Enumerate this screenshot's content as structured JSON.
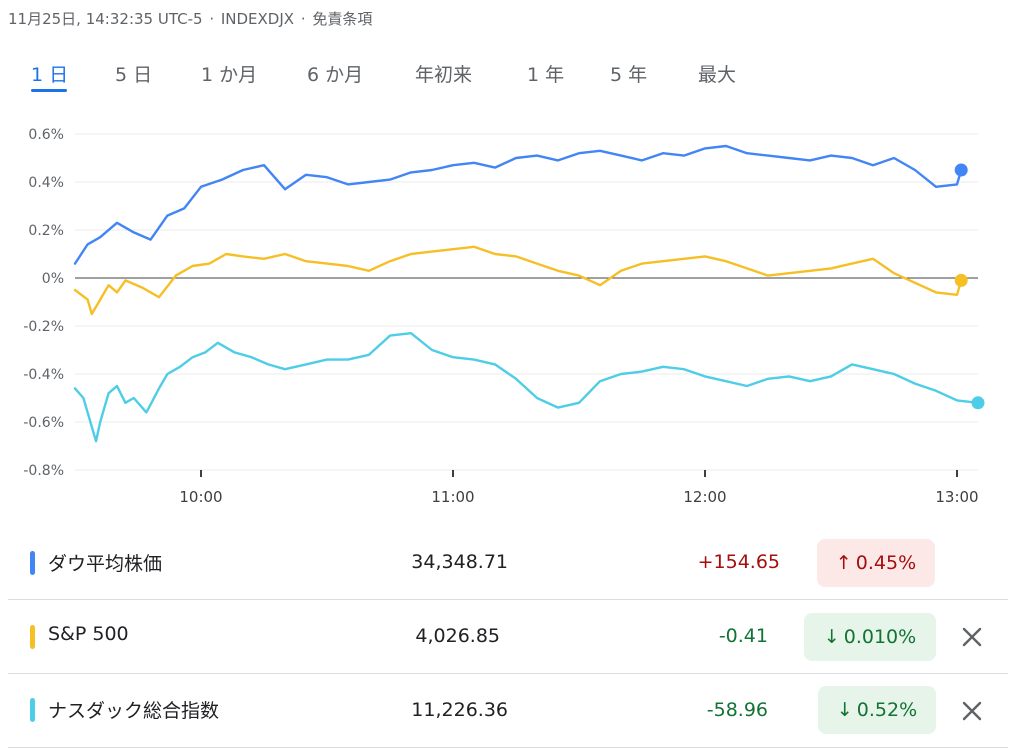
{
  "header": {
    "timestamp": "11月25日, 14:32:35 UTC-5",
    "ticker": "INDEXDJX",
    "disclaimer": "免責条項"
  },
  "tabs": [
    "1 日",
    "5 日",
    "1 か月",
    "6 か月",
    "年初来",
    "1 年",
    "5 年",
    "最大"
  ],
  "active_tab": 0,
  "chart_data": {
    "type": "line",
    "xlabel": "",
    "ylabel": "",
    "x_ticks": [
      "10:00",
      "11:00",
      "12:00",
      "13:00"
    ],
    "y_ticks": [
      "0.6%",
      "0.4%",
      "0.2%",
      "0%",
      "-0.2%",
      "-0.4%",
      "-0.6%",
      "-0.8%"
    ],
    "ylim": [
      -0.8,
      0.6
    ],
    "x_unit": "minutes since 9:30",
    "xlim": [
      0,
      215
    ],
    "grid": true,
    "series": [
      {
        "name": "ダウ平均株価",
        "color": "#4285f4",
        "x": [
          0,
          3,
          6,
          10,
          14,
          18,
          22,
          26,
          30,
          35,
          40,
          45,
          50,
          55,
          60,
          65,
          70,
          75,
          80,
          85,
          90,
          95,
          100,
          105,
          110,
          115,
          120,
          125,
          130,
          135,
          140,
          145,
          150,
          155,
          160,
          165,
          170,
          175,
          180,
          185,
          190,
          195,
          200,
          205,
          210,
          211
        ],
        "values": [
          0.06,
          0.14,
          0.17,
          0.23,
          0.19,
          0.16,
          0.26,
          0.29,
          0.38,
          0.41,
          0.45,
          0.47,
          0.37,
          0.43,
          0.42,
          0.39,
          0.4,
          0.41,
          0.44,
          0.45,
          0.47,
          0.48,
          0.46,
          0.5,
          0.51,
          0.49,
          0.52,
          0.53,
          0.51,
          0.49,
          0.52,
          0.51,
          0.54,
          0.55,
          0.52,
          0.51,
          0.5,
          0.49,
          0.51,
          0.5,
          0.47,
          0.5,
          0.45,
          0.38,
          0.39,
          0.45
        ]
      },
      {
        "name": "S&P 500",
        "color": "#f6bf26",
        "x": [
          0,
          3,
          4,
          6,
          8,
          10,
          12,
          16,
          20,
          24,
          28,
          32,
          36,
          40,
          45,
          50,
          55,
          60,
          65,
          70,
          75,
          80,
          85,
          90,
          95,
          100,
          105,
          110,
          115,
          120,
          125,
          130,
          135,
          140,
          145,
          150,
          155,
          160,
          165,
          170,
          175,
          180,
          185,
          190,
          195,
          200,
          205,
          210,
          211
        ],
        "values": [
          -0.05,
          -0.09,
          -0.15,
          -0.09,
          -0.03,
          -0.06,
          -0.01,
          -0.04,
          -0.08,
          0.01,
          0.05,
          0.06,
          0.1,
          0.09,
          0.08,
          0.1,
          0.07,
          0.06,
          0.05,
          0.03,
          0.07,
          0.1,
          0.11,
          0.12,
          0.13,
          0.1,
          0.09,
          0.06,
          0.03,
          0.01,
          -0.03,
          0.03,
          0.06,
          0.07,
          0.08,
          0.09,
          0.07,
          0.04,
          0.01,
          0.02,
          0.03,
          0.04,
          0.06,
          0.08,
          0.02,
          -0.02,
          -0.06,
          -0.07,
          -0.01
        ]
      },
      {
        "name": "ナスダック総合指数",
        "color": "#4ecde6",
        "x": [
          0,
          2,
          4,
          5,
          6,
          8,
          10,
          12,
          14,
          17,
          20,
          22,
          25,
          28,
          31,
          34,
          38,
          42,
          46,
          50,
          55,
          60,
          65,
          70,
          75,
          80,
          85,
          90,
          95,
          100,
          105,
          110,
          115,
          120,
          125,
          130,
          135,
          140,
          145,
          150,
          155,
          160,
          165,
          170,
          175,
          180,
          185,
          190,
          195,
          200,
          205,
          210,
          215
        ],
        "values": [
          -0.46,
          -0.5,
          -0.62,
          -0.68,
          -0.6,
          -0.48,
          -0.45,
          -0.52,
          -0.5,
          -0.56,
          -0.46,
          -0.4,
          -0.37,
          -0.33,
          -0.31,
          -0.27,
          -0.31,
          -0.33,
          -0.36,
          -0.38,
          -0.36,
          -0.34,
          -0.34,
          -0.32,
          -0.24,
          -0.23,
          -0.3,
          -0.33,
          -0.34,
          -0.36,
          -0.42,
          -0.5,
          -0.54,
          -0.52,
          -0.43,
          -0.4,
          -0.39,
          -0.37,
          -0.38,
          -0.41,
          -0.43,
          -0.45,
          -0.42,
          -0.41,
          -0.43,
          -0.41,
          -0.36,
          -0.38,
          -0.4,
          -0.44,
          -0.47,
          -0.51,
          -0.52
        ]
      }
    ]
  },
  "quotes": [
    {
      "name": "ダウ平均株価",
      "color": "#4285f4",
      "price": "34,348.71",
      "change": "+154.65",
      "pct": "0.45%",
      "direction": "up",
      "removable": false
    },
    {
      "name": "S&P 500",
      "color": "#f6bf26",
      "price": "4,026.85",
      "change": "-0.41",
      "pct": "0.010%",
      "direction": "down",
      "removable": true
    },
    {
      "name": "ナスダック総合指数",
      "color": "#4ecde6",
      "price": "11,226.36",
      "change": "-58.96",
      "pct": "0.52%",
      "direction": "down",
      "removable": true
    }
  ]
}
